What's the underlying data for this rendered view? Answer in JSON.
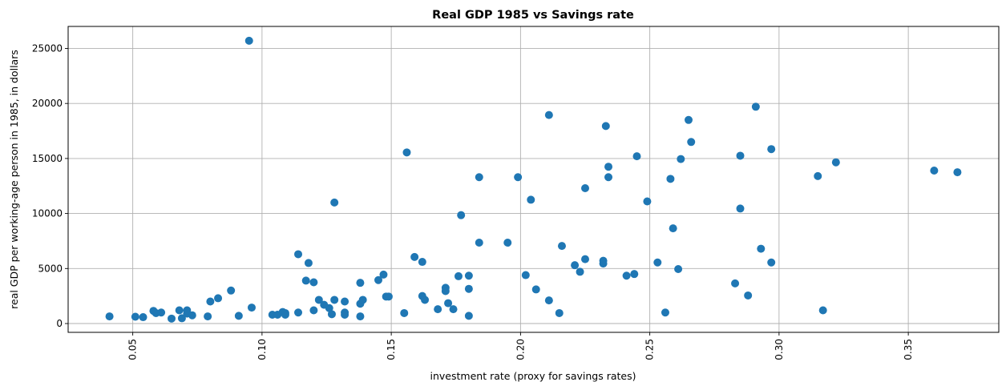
{
  "chart_data": {
    "type": "scatter",
    "title": "Real GDP 1985 vs Savings rate",
    "xlabel": "investment rate (proxy for savings rates)",
    "ylabel": "real GDP per working-age person in 1985, in dollars",
    "xlim": [
      0.025,
      0.385
    ],
    "ylim": [
      -800,
      27000
    ],
    "xticks": [
      0.05,
      0.1,
      0.15,
      0.2,
      0.25,
      0.3,
      0.35
    ],
    "xtick_labels": [
      "0.05",
      "0.10",
      "0.15",
      "0.20",
      "0.25",
      "0.30",
      "0.35"
    ],
    "yticks": [
      0,
      5000,
      10000,
      15000,
      20000,
      25000
    ],
    "ytick_labels": [
      "0",
      "5000",
      "10000",
      "15000",
      "20000",
      "25000"
    ],
    "grid": true,
    "marker_color": "#1f77b4",
    "points": [
      [
        0.041,
        650
      ],
      [
        0.051,
        620
      ],
      [
        0.054,
        580
      ],
      [
        0.058,
        1150
      ],
      [
        0.059,
        950
      ],
      [
        0.061,
        1000
      ],
      [
        0.065,
        450
      ],
      [
        0.068,
        1200
      ],
      [
        0.069,
        480
      ],
      [
        0.071,
        900
      ],
      [
        0.071,
        1200
      ],
      [
        0.073,
        750
      ],
      [
        0.079,
        650
      ],
      [
        0.08,
        2000
      ],
      [
        0.083,
        2300
      ],
      [
        0.088,
        3000
      ],
      [
        0.091,
        700
      ],
      [
        0.095,
        25700
      ],
      [
        0.096,
        1450
      ],
      [
        0.104,
        800
      ],
      [
        0.106,
        800
      ],
      [
        0.108,
        1050
      ],
      [
        0.109,
        950
      ],
      [
        0.109,
        800
      ],
      [
        0.114,
        1000
      ],
      [
        0.114,
        6300
      ],
      [
        0.117,
        3900
      ],
      [
        0.118,
        5500
      ],
      [
        0.12,
        3750
      ],
      [
        0.12,
        1200
      ],
      [
        0.122,
        2150
      ],
      [
        0.124,
        1700
      ],
      [
        0.126,
        1400
      ],
      [
        0.127,
        850
      ],
      [
        0.128,
        2150
      ],
      [
        0.128,
        11000
      ],
      [
        0.132,
        1000
      ],
      [
        0.132,
        800
      ],
      [
        0.132,
        2000
      ],
      [
        0.138,
        3700
      ],
      [
        0.138,
        1800
      ],
      [
        0.138,
        650
      ],
      [
        0.139,
        2150
      ],
      [
        0.145,
        3950
      ],
      [
        0.147,
        4450
      ],
      [
        0.148,
        2450
      ],
      [
        0.149,
        2450
      ],
      [
        0.155,
        950
      ],
      [
        0.156,
        15550
      ],
      [
        0.159,
        6050
      ],
      [
        0.162,
        5600
      ],
      [
        0.162,
        2500
      ],
      [
        0.163,
        2150
      ],
      [
        0.168,
        1300
      ],
      [
        0.171,
        3250
      ],
      [
        0.171,
        2950
      ],
      [
        0.172,
        1850
      ],
      [
        0.174,
        1300
      ],
      [
        0.176,
        4300
      ],
      [
        0.177,
        9850
      ],
      [
        0.18,
        4350
      ],
      [
        0.18,
        3150
      ],
      [
        0.18,
        700
      ],
      [
        0.184,
        7350
      ],
      [
        0.184,
        13300
      ],
      [
        0.195,
        7350
      ],
      [
        0.199,
        13300
      ],
      [
        0.202,
        4400
      ],
      [
        0.204,
        11250
      ],
      [
        0.206,
        3100
      ],
      [
        0.211,
        18950
      ],
      [
        0.211,
        2100
      ],
      [
        0.215,
        950
      ],
      [
        0.216,
        7050
      ],
      [
        0.221,
        5300
      ],
      [
        0.223,
        4700
      ],
      [
        0.225,
        12300
      ],
      [
        0.225,
        5850
      ],
      [
        0.232,
        5700
      ],
      [
        0.232,
        5450
      ],
      [
        0.233,
        17950
      ],
      [
        0.234,
        14250
      ],
      [
        0.234,
        13300
      ],
      [
        0.241,
        4350
      ],
      [
        0.244,
        4500
      ],
      [
        0.245,
        15200
      ],
      [
        0.249,
        11100
      ],
      [
        0.253,
        5550
      ],
      [
        0.256,
        1000
      ],
      [
        0.258,
        13150
      ],
      [
        0.259,
        8650
      ],
      [
        0.261,
        4950
      ],
      [
        0.262,
        14950
      ],
      [
        0.265,
        18500
      ],
      [
        0.266,
        16500
      ],
      [
        0.283,
        3650
      ],
      [
        0.285,
        15250
      ],
      [
        0.285,
        10450
      ],
      [
        0.288,
        2550
      ],
      [
        0.291,
        19700
      ],
      [
        0.293,
        6800
      ],
      [
        0.297,
        15850
      ],
      [
        0.297,
        5550
      ],
      [
        0.315,
        13400
      ],
      [
        0.317,
        1200
      ],
      [
        0.322,
        14650
      ],
      [
        0.36,
        13900
      ],
      [
        0.369,
        13750
      ]
    ]
  }
}
